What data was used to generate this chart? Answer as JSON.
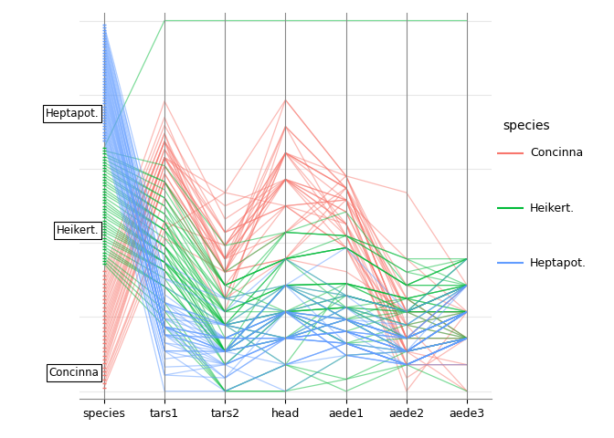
{
  "columns": [
    "species",
    "tars1",
    "tars2",
    "head",
    "aede1",
    "aede2",
    "aede3"
  ],
  "species_colors": {
    "Concinna": "#F8766D",
    "Heikert.": "#00BA38",
    "Heptapot.": "#619CFF"
  },
  "background_color": "#FFFFFF",
  "grid_color": "#E8E8E8",
  "legend_title": "species",
  "alpha": 0.5,
  "linewidth": 0.9,
  "data": [
    [
      "Concinna",
      131,
      53,
      58,
      121,
      88,
      56
    ],
    [
      "Concinna",
      132,
      59,
      60,
      122,
      95,
      57
    ],
    [
      "Concinna",
      133,
      50,
      59,
      121,
      84,
      55
    ],
    [
      "Concinna",
      133,
      55,
      58,
      120,
      90,
      56
    ],
    [
      "Concinna",
      136,
      52,
      56,
      116,
      85,
      53
    ],
    [
      "Concinna",
      138,
      51,
      54,
      114,
      86,
      55
    ],
    [
      "Concinna",
      138,
      53,
      54,
      120,
      86,
      56
    ],
    [
      "Concinna",
      138,
      53,
      55,
      122,
      85,
      56
    ],
    [
      "Concinna",
      138,
      54,
      56,
      116,
      83,
      53
    ],
    [
      "Concinna",
      139,
      53,
      59,
      121,
      86,
      56
    ],
    [
      "Concinna",
      139,
      53,
      60,
      122,
      87,
      55
    ],
    [
      "Concinna",
      140,
      54,
      57,
      119,
      84,
      56
    ],
    [
      "Concinna",
      140,
      54,
      59,
      117,
      81,
      55
    ],
    [
      "Concinna",
      141,
      53,
      58,
      118,
      85,
      55
    ],
    [
      "Concinna",
      141,
      54,
      55,
      121,
      84,
      57
    ],
    [
      "Concinna",
      141,
      55,
      57,
      117,
      83,
      55
    ],
    [
      "Concinna",
      141,
      55,
      58,
      122,
      86,
      57
    ],
    [
      "Concinna",
      141,
      58,
      57,
      116,
      82,
      54
    ],
    [
      "Concinna",
      141,
      59,
      56,
      120,
      87,
      55
    ],
    [
      "Concinna",
      142,
      54,
      57,
      120,
      82,
      54
    ],
    [
      "Concinna",
      142,
      56,
      57,
      119,
      84,
      55
    ],
    [
      "Concinna",
      143,
      51,
      58,
      117,
      83,
      56
    ],
    [
      "Concinna",
      143,
      53,
      54,
      121,
      84,
      57
    ],
    [
      "Concinna",
      143,
      55,
      57,
      120,
      83,
      55
    ],
    [
      "Concinna",
      143,
      56,
      56,
      120,
      83,
      55
    ],
    [
      "Concinna",
      144,
      51,
      58,
      121,
      86,
      56
    ],
    [
      "Concinna",
      144,
      53,
      57,
      118,
      83,
      54
    ],
    [
      "Concinna",
      145,
      56,
      56,
      118,
      80,
      56
    ],
    [
      "Concinna",
      146,
      54,
      58,
      121,
      84,
      56
    ],
    [
      "Concinna",
      148,
      57,
      57,
      118,
      82,
      55
    ],
    [
      "Heikert.",
      120,
      44,
      50,
      104,
      82,
      53
    ],
    [
      "Heikert.",
      121,
      44,
      49,
      105,
      82,
      55
    ],
    [
      "Heikert.",
      122,
      44,
      49,
      107,
      83,
      55
    ],
    [
      "Heikert.",
      123,
      44,
      50,
      105,
      83,
      55
    ],
    [
      "Heikert.",
      125,
      47,
      52,
      113,
      86,
      58
    ],
    [
      "Heikert.",
      125,
      47,
      53,
      110,
      87,
      56
    ],
    [
      "Heikert.",
      125,
      49,
      52,
      112,
      86,
      56
    ],
    [
      "Heikert.",
      126,
      46,
      52,
      110,
      83,
      55
    ],
    [
      "Heikert.",
      127,
      47,
      53,
      110,
      86,
      57
    ],
    [
      "Heikert.",
      127,
      47,
      54,
      111,
      87,
      57
    ],
    [
      "Heikert.",
      127,
      49,
      51,
      110,
      84,
      55
    ],
    [
      "Heikert.",
      128,
      46,
      52,
      108,
      85,
      55
    ],
    [
      "Heikert.",
      128,
      47,
      52,
      108,
      84,
      56
    ],
    [
      "Heikert.",
      128,
      49,
      52,
      111,
      85,
      57
    ],
    [
      "Heikert.",
      128,
      49,
      54,
      112,
      86,
      57
    ],
    [
      "Heikert.",
      128,
      50,
      52,
      109,
      86,
      55
    ],
    [
      "Heikert.",
      129,
      47,
      51,
      111,
      84,
      56
    ],
    [
      "Heikert.",
      129,
      47,
      51,
      112,
      86,
      58
    ],
    [
      "Heikert.",
      129,
      49,
      50,
      113,
      87,
      57
    ],
    [
      "Heikert.",
      130,
      47,
      52,
      112,
      86,
      56
    ],
    [
      "Heikert.",
      130,
      49,
      51,
      110,
      83,
      56
    ],
    [
      "Heikert.",
      130,
      49,
      52,
      111,
      84,
      56
    ],
    [
      "Heikert.",
      130,
      50,
      53,
      113,
      87,
      57
    ],
    [
      "Heikert.",
      131,
      50,
      53,
      113,
      87,
      55
    ],
    [
      "Heikert.",
      132,
      47,
      53,
      113,
      86,
      56
    ],
    [
      "Heikert.",
      132,
      50,
      53,
      111,
      86,
      57
    ],
    [
      "Heikert.",
      132,
      51,
      52,
      108,
      83,
      55
    ],
    [
      "Heikert.",
      133,
      48,
      52,
      111,
      86,
      57
    ],
    [
      "Heikert.",
      133,
      49,
      53,
      113,
      87,
      56
    ],
    [
      "Heikert.",
      133,
      51,
      53,
      112,
      86,
      57
    ],
    [
      "Heikert.",
      134,
      49,
      54,
      116,
      88,
      57
    ],
    [
      "Heikert.",
      134,
      52,
      52,
      111,
      85,
      56
    ],
    [
      "Heikert.",
      135,
      50,
      55,
      117,
      90,
      57
    ],
    [
      "Heikert.",
      135,
      52,
      54,
      116,
      88,
      57
    ],
    [
      "Heikert.",
      136,
      51,
      55,
      117,
      90,
      58
    ],
    [
      "Heikert.",
      136,
      52,
      54,
      116,
      88,
      58
    ],
    [
      "Heikert.",
      137,
      52,
      54,
      116,
      88,
      58
    ],
    [
      "Heikert.",
      138,
      52,
      54,
      117,
      89,
      58
    ],
    [
      "Heikert.",
      138,
      53,
      55,
      119,
      88,
      58
    ],
    [
      "Heikert.",
      140,
      55,
      55,
      117,
      89,
      57
    ],
    [
      "Heikert.",
      158,
      72,
      63,
      135,
      108,
      67
    ],
    [
      "Heptapot.",
      112,
      44,
      50,
      108,
      82,
      55
    ],
    [
      "Heptapot.",
      114,
      45,
      52,
      107,
      83,
      55
    ],
    [
      "Heptapot.",
      114,
      46,
      49,
      107,
      83,
      56
    ],
    [
      "Heptapot.",
      115,
      46,
      52,
      107,
      82,
      54
    ],
    [
      "Heptapot.",
      116,
      47,
      53,
      110,
      85,
      57
    ],
    [
      "Heptapot.",
      117,
      44,
      50,
      108,
      82,
      55
    ],
    [
      "Heptapot.",
      117,
      46,
      51,
      110,
      84,
      57
    ],
    [
      "Heptapot.",
      117,
      47,
      52,
      107,
      82,
      55
    ],
    [
      "Heptapot.",
      117,
      47,
      52,
      108,
      82,
      55
    ],
    [
      "Heptapot.",
      118,
      46,
      51,
      110,
      84,
      56
    ],
    [
      "Heptapot.",
      118,
      47,
      51,
      108,
      82,
      55
    ],
    [
      "Heptapot.",
      119,
      45,
      51,
      109,
      83,
      56
    ],
    [
      "Heptapot.",
      119,
      46,
      51,
      109,
      84,
      56
    ],
    [
      "Heptapot.",
      119,
      47,
      50,
      107,
      82,
      55
    ],
    [
      "Heptapot.",
      119,
      47,
      51,
      108,
      83,
      56
    ],
    [
      "Heptapot.",
      119,
      48,
      51,
      108,
      82,
      55
    ],
    [
      "Heptapot.",
      119,
      48,
      51,
      111,
      85,
      57
    ],
    [
      "Heptapot.",
      120,
      45,
      51,
      110,
      83,
      57
    ],
    [
      "Heptapot.",
      120,
      46,
      51,
      109,
      83,
      56
    ],
    [
      "Heptapot.",
      120,
      47,
      51,
      108,
      82,
      55
    ],
    [
      "Heptapot.",
      120,
      47,
      51,
      109,
      83,
      55
    ],
    [
      "Heptapot.",
      120,
      47,
      52,
      108,
      83,
      55
    ],
    [
      "Heptapot.",
      120,
      47,
      53,
      108,
      82,
      55
    ],
    [
      "Heptapot.",
      120,
      48,
      51,
      110,
      84,
      57
    ],
    [
      "Heptapot.",
      120,
      48,
      51,
      111,
      83,
      56
    ],
    [
      "Heptapot.",
      120,
      48,
      52,
      109,
      82,
      55
    ],
    [
      "Heptapot.",
      121,
      47,
      53,
      110,
      83,
      56
    ],
    [
      "Heptapot.",
      121,
      48,
      52,
      110,
      83,
      56
    ],
    [
      "Heptapot.",
      121,
      49,
      50,
      108,
      82,
      55
    ],
    [
      "Heptapot.",
      122,
      47,
      52,
      109,
      83,
      55
    ],
    [
      "Heptapot.",
      122,
      48,
      52,
      110,
      84,
      57
    ],
    [
      "Heptapot.",
      122,
      49,
      51,
      109,
      83,
      55
    ],
    [
      "Heptapot.",
      122,
      49,
      52,
      109,
      84,
      56
    ],
    [
      "Heptapot.",
      123,
      47,
      53,
      112,
      86,
      57
    ],
    [
      "Heptapot.",
      123,
      48,
      52,
      109,
      84,
      56
    ],
    [
      "Heptapot.",
      123,
      49,
      51,
      109,
      83,
      56
    ],
    [
      "Heptapot.",
      123,
      49,
      52,
      110,
      84,
      56
    ],
    [
      "Heptapot.",
      124,
      48,
      52,
      110,
      84,
      56
    ],
    [
      "Heptapot.",
      125,
      49,
      53,
      111,
      84,
      56
    ],
    [
      "Heptapot.",
      126,
      50,
      54,
      112,
      84,
      56
    ],
    [
      "Heptapot.",
      126,
      51,
      52,
      112,
      86,
      57
    ],
    [
      "Heptapot.",
      128,
      51,
      53,
      116,
      86,
      58
    ]
  ]
}
